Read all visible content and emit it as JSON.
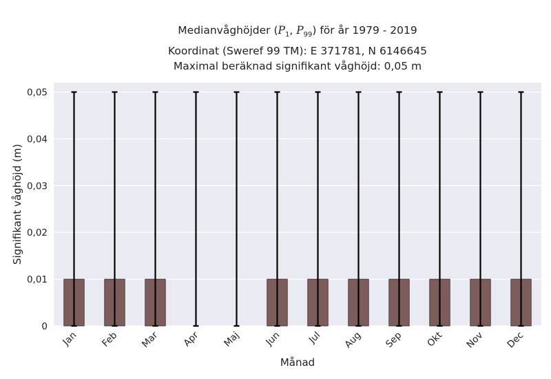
{
  "title": {
    "line1_prefix": "Medianvåghöjder (",
    "p_low": "P",
    "p_low_sub": "1",
    "sep": ", ",
    "p_high": "P",
    "p_high_sub": "99",
    "line1_suffix": ") för år 1979 - 2019",
    "line2": "Koordinat (Sweref 99 TM): E 371781, N 6146645",
    "line3": "Maximal beräknad signifikant våghöjd: 0,05 m"
  },
  "chart_data": {
    "type": "bar",
    "categories": [
      "Jan",
      "Feb",
      "Mar",
      "Apr",
      "Maj",
      "Jun",
      "Jul",
      "Aug",
      "Sep",
      "Okt",
      "Nov",
      "Dec"
    ],
    "values": [
      0.01,
      0.01,
      0.01,
      0,
      0,
      0.01,
      0.01,
      0.01,
      0.01,
      0.01,
      0.01,
      0.01
    ],
    "error_low": [
      0,
      0,
      0,
      0,
      0,
      0,
      0,
      0,
      0,
      0,
      0,
      0
    ],
    "error_high": [
      0.05,
      0.05,
      0.05,
      0.05,
      0.05,
      0.05,
      0.05,
      0.05,
      0.05,
      0.05,
      0.05,
      0.05
    ],
    "xlabel": "Månad",
    "ylabel": "Signifikant våghöjd (m)",
    "ylim": [
      0,
      0.052
    ],
    "yticks": [
      0,
      0.01,
      0.02,
      0.03,
      0.04,
      0.05
    ],
    "ytick_labels": [
      "0",
      "0,01",
      "0,02",
      "0,03",
      "0,04",
      "0,05"
    ],
    "grid": true,
    "colors": {
      "plot_background": "#eaeaf2",
      "grid": "#ffffff",
      "bar": "#7d5c5c",
      "bar_edge": "#3a2a2a",
      "error_bar": "#000000"
    }
  }
}
